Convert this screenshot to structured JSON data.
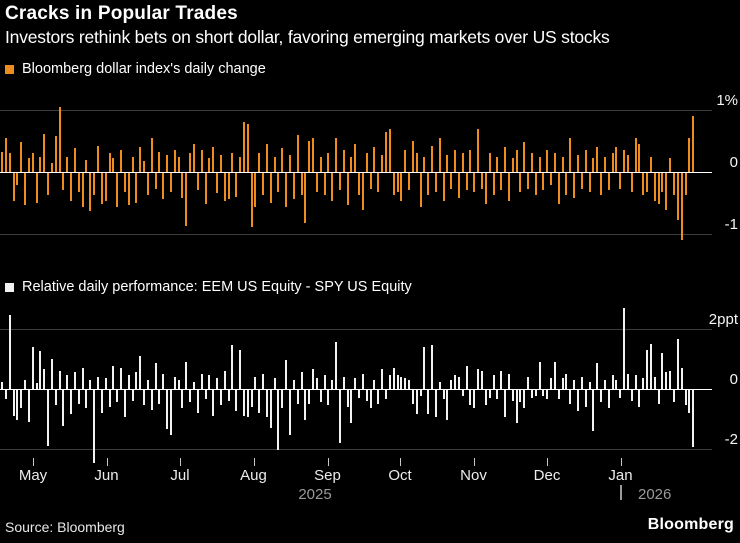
{
  "header": {
    "title": "Cracks in Popular Trades",
    "subtitle": "Investors rethink bets on short dollar, favoring emerging markets over US stocks"
  },
  "colors": {
    "background": "#000000",
    "dollar_orange": "#EE8C1E",
    "relative_white": "#F2F2F2",
    "grid": "#3D3D3D",
    "zero_line": "#FFFFFF",
    "muted_year": "#9A9A9A"
  },
  "x_axis": {
    "months": [
      "May",
      "Jun",
      "Jul",
      "Aug",
      "Sep",
      "Oct",
      "Nov",
      "Dec",
      "Jan"
    ],
    "years": [
      "2025",
      "2026"
    ]
  },
  "footer": {
    "source": "Source: Bloomberg",
    "brand": "Bloomberg"
  },
  "chart_data": [
    {
      "type": "bar",
      "legend": "Bloomberg dollar index's daily change",
      "unit": "%",
      "color": "#EE8C1E",
      "ylim": [
        -1.3,
        1.1
      ],
      "yticks": [
        {
          "label": "1%",
          "value": 1
        },
        {
          "label": "0",
          "value": 0
        },
        {
          "label": "-1",
          "value": -1
        }
      ],
      "values": [
        0.33,
        0.55,
        0.3,
        -0.45,
        -0.2,
        0.48,
        -0.52,
        0.22,
        0.3,
        -0.48,
        0.25,
        0.62,
        -0.35,
        0.15,
        0.58,
        1.05,
        -0.28,
        0.25,
        -0.45,
        0.38,
        -0.3,
        -0.55,
        0.2,
        -0.62,
        -0.35,
        0.42,
        -0.5,
        -0.45,
        0.3,
        0.22,
        -0.55,
        0.35,
        -0.3,
        -0.52,
        0.25,
        -0.48,
        0.4,
        0.18,
        -0.35,
        0.55,
        -0.25,
        0.32,
        -0.42,
        0.28,
        -0.3,
        0.35,
        0.25,
        -0.4,
        -0.85,
        0.3,
        0.45,
        -0.28,
        0.35,
        -0.5,
        0.22,
        0.4,
        -0.32,
        0.28,
        -0.45,
        -0.42,
        0.3,
        -0.38,
        0.25,
        0.8,
        0.77,
        -0.87,
        -0.55,
        0.3,
        -0.35,
        0.45,
        -0.48,
        0.25,
        -0.3,
        0.38,
        -0.55,
        0.28,
        -0.42,
        0.6,
        -0.35,
        -0.8,
        0.5,
        0.55,
        -0.3,
        0.25,
        -0.35,
        0.3,
        -0.45,
        0.55,
        -0.28,
        0.35,
        -0.52,
        0.25,
        0.45,
        -0.35,
        -0.6,
        0.3,
        -0.25,
        0.4,
        -0.3,
        0.28,
        0.65,
        0.7,
        -0.35,
        -0.3,
        -0.45,
        0.35,
        -0.28,
        0.5,
        0.3,
        -0.55,
        0.25,
        -0.35,
        0.42,
        -0.3,
        0.55,
        -0.45,
        0.28,
        -0.25,
        0.35,
        -0.4,
        0.3,
        -0.28,
        0.35,
        -0.3,
        0.7,
        -0.25,
        -0.5,
        0.3,
        -0.35,
        0.25,
        -0.28,
        0.4,
        -0.45,
        0.22,
        0.35,
        -0.3,
        0.48,
        -0.25,
        0.3,
        -0.35,
        0.25,
        -0.28,
        0.35,
        -0.2,
        0.3,
        -0.5,
        0.25,
        -0.35,
        0.55,
        -0.4,
        0.28,
        -0.25,
        0.35,
        -0.3,
        0.22,
        0.4,
        -0.35,
        0.25,
        -0.28,
        0.3,
        0.4,
        -0.25,
        0.35,
        0.28,
        -0.3,
        0.55,
        0.45,
        -0.35,
        -0.3,
        0.25,
        -0.45,
        -0.5,
        -0.3,
        -0.6,
        0.22,
        -0.35,
        -0.75,
        -1.08,
        -0.35,
        0.55,
        0.9
      ]
    },
    {
      "type": "bar",
      "legend": "Relative daily performance: EEM US Equity - SPY US Equity",
      "unit": "ppt",
      "color": "#F2F2F2",
      "ylim": [
        -2.5,
        2.8
      ],
      "yticks": [
        {
          "label": "2ppt",
          "value": 2
        },
        {
          "label": "0",
          "value": 0
        },
        {
          "label": "-2",
          "value": -2
        }
      ],
      "values": [
        0.25,
        -0.3,
        2.45,
        -0.85,
        -1.0,
        -0.6,
        0.3,
        -1.05,
        1.4,
        0.2,
        1.25,
        0.65,
        -1.85,
        1.0,
        -0.5,
        0.6,
        -1.2,
        0.45,
        -0.8,
        0.55,
        -0.45,
        0.7,
        -0.6,
        0.3,
        -2.4,
        0.4,
        -0.75,
        0.35,
        -0.55,
        0.75,
        -0.4,
        0.7,
        -0.9,
        0.45,
        -0.35,
        0.55,
        1.1,
        -0.5,
        0.3,
        -0.65,
        0.85,
        -0.45,
        0.5,
        -1.3,
        -1.5,
        0.4,
        0.3,
        -0.6,
        0.9,
        -0.4,
        0.25,
        -0.75,
        0.5,
        -0.3,
        0.45,
        -0.85,
        0.35,
        -0.5,
        0.6,
        -0.35,
        1.45,
        -0.7,
        1.3,
        -0.85,
        -0.9,
        -0.55,
        0.4,
        -0.75,
        0.5,
        -0.9,
        -1.25,
        0.35,
        -2.0,
        -0.6,
        0.95,
        -1.5,
        0.3,
        -0.45,
        0.55,
        -1.0,
        -0.45,
        0.65,
        0.35,
        -0.4,
        0.45,
        -0.5,
        0.3,
        1.55,
        -1.75,
        0.4,
        -0.55,
        -1.1,
        0.35,
        -0.25,
        0.5,
        -0.35,
        -0.6,
        0.3,
        -0.45,
        0.65,
        -0.3,
        0.45,
        0.7,
        0.45,
        0.4,
        0.35,
        0.3,
        -0.45,
        -0.8,
        -0.2,
        1.4,
        -0.8,
        1.45,
        -0.9,
        0.25,
        -0.3,
        -1.0,
        0.3,
        0.45,
        0.4,
        -0.2,
        0.75,
        -0.5,
        -0.6,
        0.65,
        0.6,
        -0.5,
        -0.25,
        0.45,
        -0.3,
        0.6,
        -0.9,
        0.5,
        -0.35,
        -1.1,
        -0.4,
        -0.6,
        0.4,
        -0.25,
        -0.2,
        0.9,
        -0.2,
        -0.3,
        0.35,
        0.9,
        -0.3,
        0.35,
        0.5,
        -0.45,
        0.3,
        -0.7,
        0.4,
        -0.55,
        0.25,
        -1.35,
        0.85,
        -0.4,
        0.3,
        -0.6,
        0.45,
        0.3,
        -0.25,
        2.7,
        0.5,
        -0.35,
        0.45,
        -0.55,
        0.35,
        1.3,
        1.5,
        0.4,
        -0.45,
        1.2,
        0.55,
        0.6,
        -0.4,
        1.65,
        0.7,
        -0.5,
        -0.75,
        -1.9
      ]
    }
  ]
}
